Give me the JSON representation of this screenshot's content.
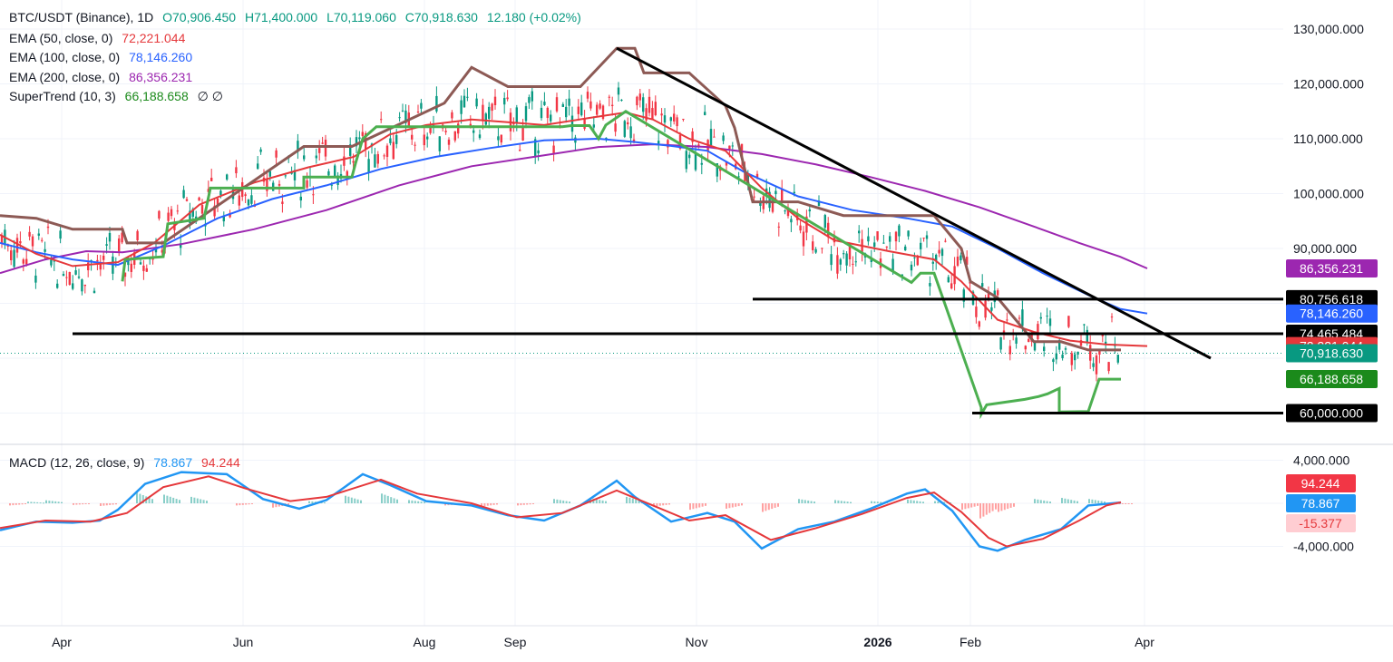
{
  "chart_data": {
    "type": "candlestick",
    "symbol": "BTC/USDT (Binance), 1D",
    "ohlc": {
      "open": "70,906.450",
      "high": "71,400.000",
      "low": "70,119.060",
      "close": "70,918.630",
      "change": "12.180 (+0.02%)"
    },
    "indicators": [
      {
        "name": "EMA (50, close, 0)",
        "value": "72,221.044",
        "color": "#e5383b"
      },
      {
        "name": "EMA (100, close, 0)",
        "value": "78,146.260",
        "color": "#2962ff"
      },
      {
        "name": "EMA (200, close, 0)",
        "value": "86,356.231",
        "color": "#9c27b0"
      },
      {
        "name": "SuperTrend (10, 3)",
        "value": "66,188.658",
        "color": "#089981"
      }
    ],
    "x_ticks": [
      "Apr",
      "Jun",
      "Aug",
      "Sep",
      "Nov",
      "2026",
      "Feb",
      "Apr"
    ],
    "y_ticks": [
      "130,000.000",
      "120,000.000",
      "110,000.000",
      "100,000.000",
      "90,000.000"
    ],
    "price_labels": [
      {
        "value": 86356.231,
        "text": "86,356.231",
        "color": "#9c27b0"
      },
      {
        "value": 80756.618,
        "text": "80,756.618",
        "color": "#000000"
      },
      {
        "value": 78146.26,
        "text": "78,146.260",
        "color": "#2962ff"
      },
      {
        "value": 74465.484,
        "text": "74,465.484",
        "color": "#000000"
      },
      {
        "value": 72221.044,
        "text": "72,221.044",
        "color": "#e5383b"
      },
      {
        "value": 70918.63,
        "text": "70,918.630",
        "color": "#089981"
      },
      {
        "value": 66188.658,
        "text": "66,188.658",
        "color": "#1b8a1b"
      },
      {
        "value": 60000,
        "text": "60,000.000",
        "color": "#000000"
      }
    ],
    "ema200": [
      [
        0,
        85500
      ],
      [
        50,
        88000
      ],
      [
        95,
        89500
      ],
      [
        135,
        89300
      ],
      [
        200,
        90800
      ],
      [
        280,
        93500
      ],
      [
        360,
        97000
      ],
      [
        440,
        101500
      ],
      [
        520,
        105000
      ],
      [
        600,
        107000
      ],
      [
        660,
        108500
      ],
      [
        720,
        109000
      ],
      [
        780,
        108500
      ],
      [
        840,
        107200
      ],
      [
        900,
        105300
      ],
      [
        960,
        103000
      ],
      [
        1020,
        100500
      ],
      [
        1080,
        97500
      ],
      [
        1140,
        94000
      ],
      [
        1190,
        91000
      ],
      [
        1235,
        88500
      ],
      [
        1265,
        86356
      ]
    ],
    "ema100": [
      [
        0,
        91000
      ],
      [
        40,
        89300
      ],
      [
        80,
        88000
      ],
      [
        130,
        87000
      ],
      [
        180,
        90500
      ],
      [
        240,
        95500
      ],
      [
        300,
        99000
      ],
      [
        360,
        101500
      ],
      [
        420,
        104500
      ],
      [
        480,
        106700
      ],
      [
        540,
        108300
      ],
      [
        600,
        109700
      ],
      [
        660,
        110000
      ],
      [
        700,
        109400
      ],
      [
        740,
        108700
      ],
      [
        780,
        107800
      ],
      [
        820,
        104000
      ],
      [
        880,
        99500
      ],
      [
        940,
        97000
      ],
      [
        1000,
        95500
      ],
      [
        1050,
        94000
      ],
      [
        1100,
        90000
      ],
      [
        1150,
        85500
      ],
      [
        1200,
        81500
      ],
      [
        1235,
        79000
      ],
      [
        1265,
        78146
      ]
    ],
    "ema50": [
      [
        0,
        92500
      ],
      [
        40,
        89000
      ],
      [
        80,
        86800
      ],
      [
        130,
        87500
      ],
      [
        170,
        91000
      ],
      [
        220,
        98000
      ],
      [
        280,
        102000
      ],
      [
        340,
        104800
      ],
      [
        390,
        106700
      ],
      [
        430,
        110800
      ],
      [
        470,
        112500
      ],
      [
        520,
        113500
      ],
      [
        560,
        113000
      ],
      [
        600,
        112500
      ],
      [
        650,
        113800
      ],
      [
        690,
        114800
      ],
      [
        720,
        113500
      ],
      [
        760,
        110000
      ],
      [
        800,
        107800
      ],
      [
        840,
        101000
      ],
      [
        880,
        95500
      ],
      [
        920,
        91500
      ],
      [
        980,
        89500
      ],
      [
        1030,
        88000
      ],
      [
        1060,
        84000
      ],
      [
        1100,
        77000
      ],
      [
        1140,
        74800
      ],
      [
        1180,
        73200
      ],
      [
        1220,
        72500
      ],
      [
        1265,
        72221
      ]
    ],
    "supertrend_up": [
      [
        135,
        84000
      ],
      [
        138,
        88000
      ],
      [
        180,
        88500
      ],
      [
        185,
        94500
      ],
      [
        225,
        95500
      ],
      [
        232,
        101000
      ],
      [
        335,
        101000
      ],
      [
        335,
        103000
      ],
      [
        388,
        103000
      ],
      [
        392,
        105500
      ],
      [
        400,
        110000
      ],
      [
        415,
        112200
      ],
      [
        520,
        112200
      ],
      [
        620,
        112200
      ],
      [
        630,
        112400
      ],
      [
        650,
        112400
      ],
      [
        660,
        110000
      ],
      [
        668,
        112500
      ],
      [
        690,
        115000
      ],
      [
        1005,
        83800
      ],
      [
        1015,
        85500
      ],
      [
        1030,
        85500
      ],
      [
        1082,
        61000
      ],
      [
        1082,
        59800
      ],
      [
        1088,
        61500
      ],
      [
        1130,
        62500
      ],
      [
        1145,
        63000
      ],
      [
        1155,
        63500
      ],
      [
        1168,
        64500
      ],
      [
        1168,
        60200
      ],
      [
        1200,
        60300
      ],
      [
        1212,
        66188
      ],
      [
        1236,
        66188
      ]
    ],
    "supertrend_down": [
      [
        0,
        96000
      ],
      [
        40,
        95500
      ],
      [
        80,
        93500
      ],
      [
        100,
        93500
      ],
      [
        135,
        93500
      ],
      [
        140,
        91000
      ],
      [
        180,
        91000
      ],
      [
        335,
        108600
      ],
      [
        388,
        108600
      ],
      [
        490,
        116500
      ],
      [
        520,
        123000
      ],
      [
        560,
        119500
      ],
      [
        640,
        119500
      ],
      [
        680,
        126500
      ],
      [
        700,
        126500
      ],
      [
        710,
        122000
      ],
      [
        760,
        122000
      ],
      [
        800,
        116000
      ],
      [
        810,
        112000
      ],
      [
        830,
        98500
      ],
      [
        880,
        98500
      ],
      [
        930,
        96000
      ],
      [
        1000,
        96000
      ],
      [
        1030,
        96000
      ],
      [
        1060,
        90000
      ],
      [
        1070,
        84000
      ],
      [
        1100,
        81000
      ],
      [
        1140,
        73000
      ],
      [
        1170,
        73000
      ],
      [
        1200,
        71500
      ],
      [
        1236,
        71500
      ]
    ],
    "trendlines": [
      {
        "from": [
          680,
          126500
        ],
        "to": [
          1335,
          70000
        ]
      },
      {
        "from": [
          830,
          80756
        ],
        "to": [
          1536,
          80756
        ]
      },
      {
        "from": [
          80,
          74465
        ],
        "to": [
          1536,
          74465
        ]
      },
      {
        "from": [
          1072,
          60000
        ],
        "to": [
          1536,
          60000
        ]
      }
    ],
    "macd_label": "MACD (12, 26, close, 9)",
    "macd_values": {
      "macd": "78.867",
      "signal": "94.244",
      "hist": "-15.377"
    },
    "macd_ticks": [
      "4,000.000",
      "-4,000.000"
    ],
    "macd_line": [
      [
        0,
        -2500
      ],
      [
        40,
        -1700
      ],
      [
        80,
        -1800
      ],
      [
        110,
        -1600
      ],
      [
        130,
        -600
      ],
      [
        160,
        1800
      ],
      [
        200,
        2900
      ],
      [
        250,
        2700
      ],
      [
        290,
        400
      ],
      [
        330,
        -500
      ],
      [
        360,
        300
      ],
      [
        400,
        2700
      ],
      [
        430,
        1700
      ],
      [
        470,
        200
      ],
      [
        520,
        -200
      ],
      [
        560,
        -1100
      ],
      [
        600,
        -1600
      ],
      [
        640,
        -200
      ],
      [
        680,
        2100
      ],
      [
        700,
        600
      ],
      [
        740,
        -1700
      ],
      [
        780,
        -900
      ],
      [
        810,
        -1700
      ],
      [
        840,
        -4200
      ],
      [
        880,
        -2400
      ],
      [
        920,
        -1700
      ],
      [
        960,
        -500
      ],
      [
        1000,
        900
      ],
      [
        1020,
        1300
      ],
      [
        1050,
        -700
      ],
      [
        1080,
        -4000
      ],
      [
        1100,
        -4400
      ],
      [
        1130,
        -3400
      ],
      [
        1170,
        -2400
      ],
      [
        1200,
        -200
      ],
      [
        1236,
        78
      ]
    ],
    "signal_line": [
      [
        0,
        -2300
      ],
      [
        50,
        -1600
      ],
      [
        100,
        -1700
      ],
      [
        140,
        -900
      ],
      [
        180,
        1500
      ],
      [
        230,
        2500
      ],
      [
        270,
        1400
      ],
      [
        320,
        200
      ],
      [
        360,
        600
      ],
      [
        420,
        2200
      ],
      [
        460,
        900
      ],
      [
        520,
        0
      ],
      [
        570,
        -1300
      ],
      [
        620,
        -900
      ],
      [
        680,
        1200
      ],
      [
        720,
        -200
      ],
      [
        760,
        -1600
      ],
      [
        800,
        -1100
      ],
      [
        850,
        -3400
      ],
      [
        900,
        -2300
      ],
      [
        950,
        -1000
      ],
      [
        1000,
        500
      ],
      [
        1030,
        1000
      ],
      [
        1060,
        -800
      ],
      [
        1090,
        -3200
      ],
      [
        1110,
        -4000
      ],
      [
        1150,
        -3300
      ],
      [
        1190,
        -1600
      ],
      [
        1220,
        -200
      ],
      [
        1236,
        94
      ]
    ],
    "histogram": [
      [
        10,
        -200
      ],
      [
        30,
        150
      ],
      [
        50,
        280
      ],
      [
        80,
        -150
      ],
      [
        110,
        -250
      ],
      [
        150,
        1000
      ],
      [
        180,
        800
      ],
      [
        210,
        600
      ],
      [
        260,
        -200
      ],
      [
        300,
        -400
      ],
      [
        340,
        200
      ],
      [
        380,
        700
      ],
      [
        420,
        900
      ],
      [
        450,
        300
      ],
      [
        490,
        -200
      ],
      [
        530,
        -300
      ],
      [
        570,
        -200
      ],
      [
        610,
        400
      ],
      [
        650,
        500
      ],
      [
        690,
        600
      ],
      [
        720,
        -300
      ],
      [
        760,
        -600
      ],
      [
        800,
        -500
      ],
      [
        840,
        -800
      ],
      [
        880,
        400
      ],
      [
        920,
        300
      ],
      [
        960,
        200
      ],
      [
        1000,
        350
      ],
      [
        1030,
        200
      ],
      [
        1060,
        -600
      ],
      [
        1080,
        -1400
      ],
      [
        1100,
        -800
      ],
      [
        1140,
        400
      ],
      [
        1170,
        500
      ],
      [
        1200,
        400
      ],
      [
        1230,
        -100
      ]
    ]
  },
  "macd_panel": {
    "label": "MACD (12, 26, close, 9)",
    "v1": "78.867",
    "v2": "94.244"
  },
  "legend": {
    "title": "BTC/USDT (Binance), 1D",
    "o": "O70,906.450",
    "h": "H71,400.000",
    "l": "L70,119.060",
    "c": "C70,918.630",
    "chg": "12.180 (+0.02%)",
    "ema50": "EMA (50, close, 0)",
    "ema50_v": "72,221.044",
    "ema100": "EMA (100, close, 0)",
    "ema100_v": "78,146.260",
    "ema200": "EMA (200, close, 0)",
    "ema200_v": "86,356.231",
    "st": "SuperTrend (10, 3)",
    "st_v": "66,188.658",
    "st_sym": "∅ ∅"
  }
}
